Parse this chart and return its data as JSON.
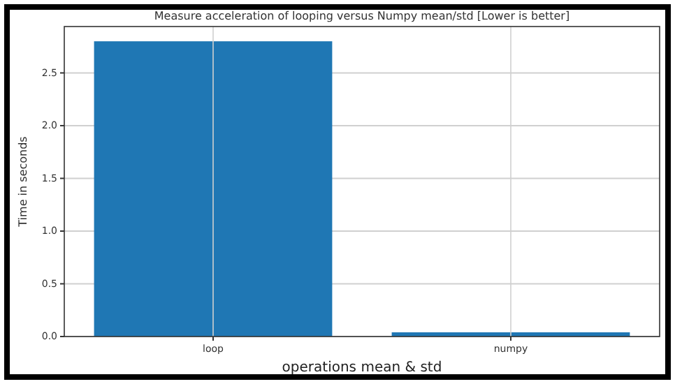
{
  "chart_data": {
    "type": "bar",
    "title": "Measure acceleration of looping versus Numpy mean/std [Lower is better]",
    "xlabel": "operations mean & std",
    "ylabel": "Time in seconds",
    "categories": [
      "loop",
      "numpy"
    ],
    "values": [
      2.8,
      0.04
    ],
    "color": "#1f77b4",
    "ylim": [
      0,
      2.94
    ],
    "yticks": [
      {
        "value": 0,
        "label": "0.0"
      },
      {
        "value": 0.5,
        "label": "0.5"
      },
      {
        "value": 1,
        "label": "1.0"
      },
      {
        "value": 1.5,
        "label": "1.5"
      },
      {
        "value": 2,
        "label": "2.0"
      },
      {
        "value": 2.5,
        "label": "2.5"
      }
    ],
    "grid": true
  }
}
